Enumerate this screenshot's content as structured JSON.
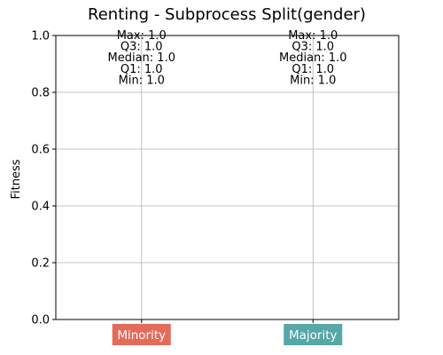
{
  "chart_data": {
    "type": "box",
    "title": "Renting - Subprocess Split(gender)",
    "ylabel": "Fitness",
    "xlabel": "",
    "ylim": [
      0.0,
      1.0
    ],
    "yticks": [
      "0.0",
      "0.2",
      "0.4",
      "0.6",
      "0.8",
      "1.0"
    ],
    "grid": true,
    "categories": [
      {
        "label": "Minority",
        "color": "#e46b5a",
        "max": 1.0,
        "q3": 1.0,
        "median": 1.0,
        "q1": 1.0,
        "min": 1.0,
        "annotations": [
          "Max: 1.0",
          "Q3: 1.0",
          "Median: 1.0",
          "Q1: 1.0",
          "Min: 1.0"
        ]
      },
      {
        "label": "Majority",
        "color": "#56a7a6",
        "max": 1.0,
        "q3": 1.0,
        "median": 1.0,
        "q1": 1.0,
        "min": 1.0,
        "annotations": [
          "Max: 1.0",
          "Q3: 1.0",
          "Median: 1.0",
          "Q1: 1.0",
          "Min: 1.0"
        ]
      }
    ]
  }
}
